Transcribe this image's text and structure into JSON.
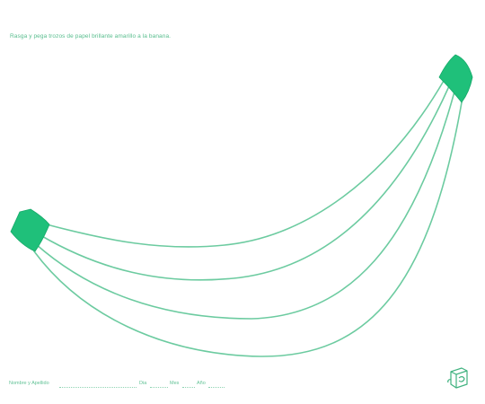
{
  "worksheet": {
    "instruction": "Rasga y pega trozos de papel brillante amarillo a la banana.",
    "footer": {
      "name_label": "Nombre y Apellido",
      "day_label": "Dia",
      "month_label": "Mes",
      "year_label": "Año"
    }
  },
  "colors": {
    "ink": "#3fb27f",
    "tip": "#1fc07a",
    "outline": "#5cc697"
  },
  "icons": [
    "banana-outline-icon",
    "publisher-logo-icon"
  ]
}
